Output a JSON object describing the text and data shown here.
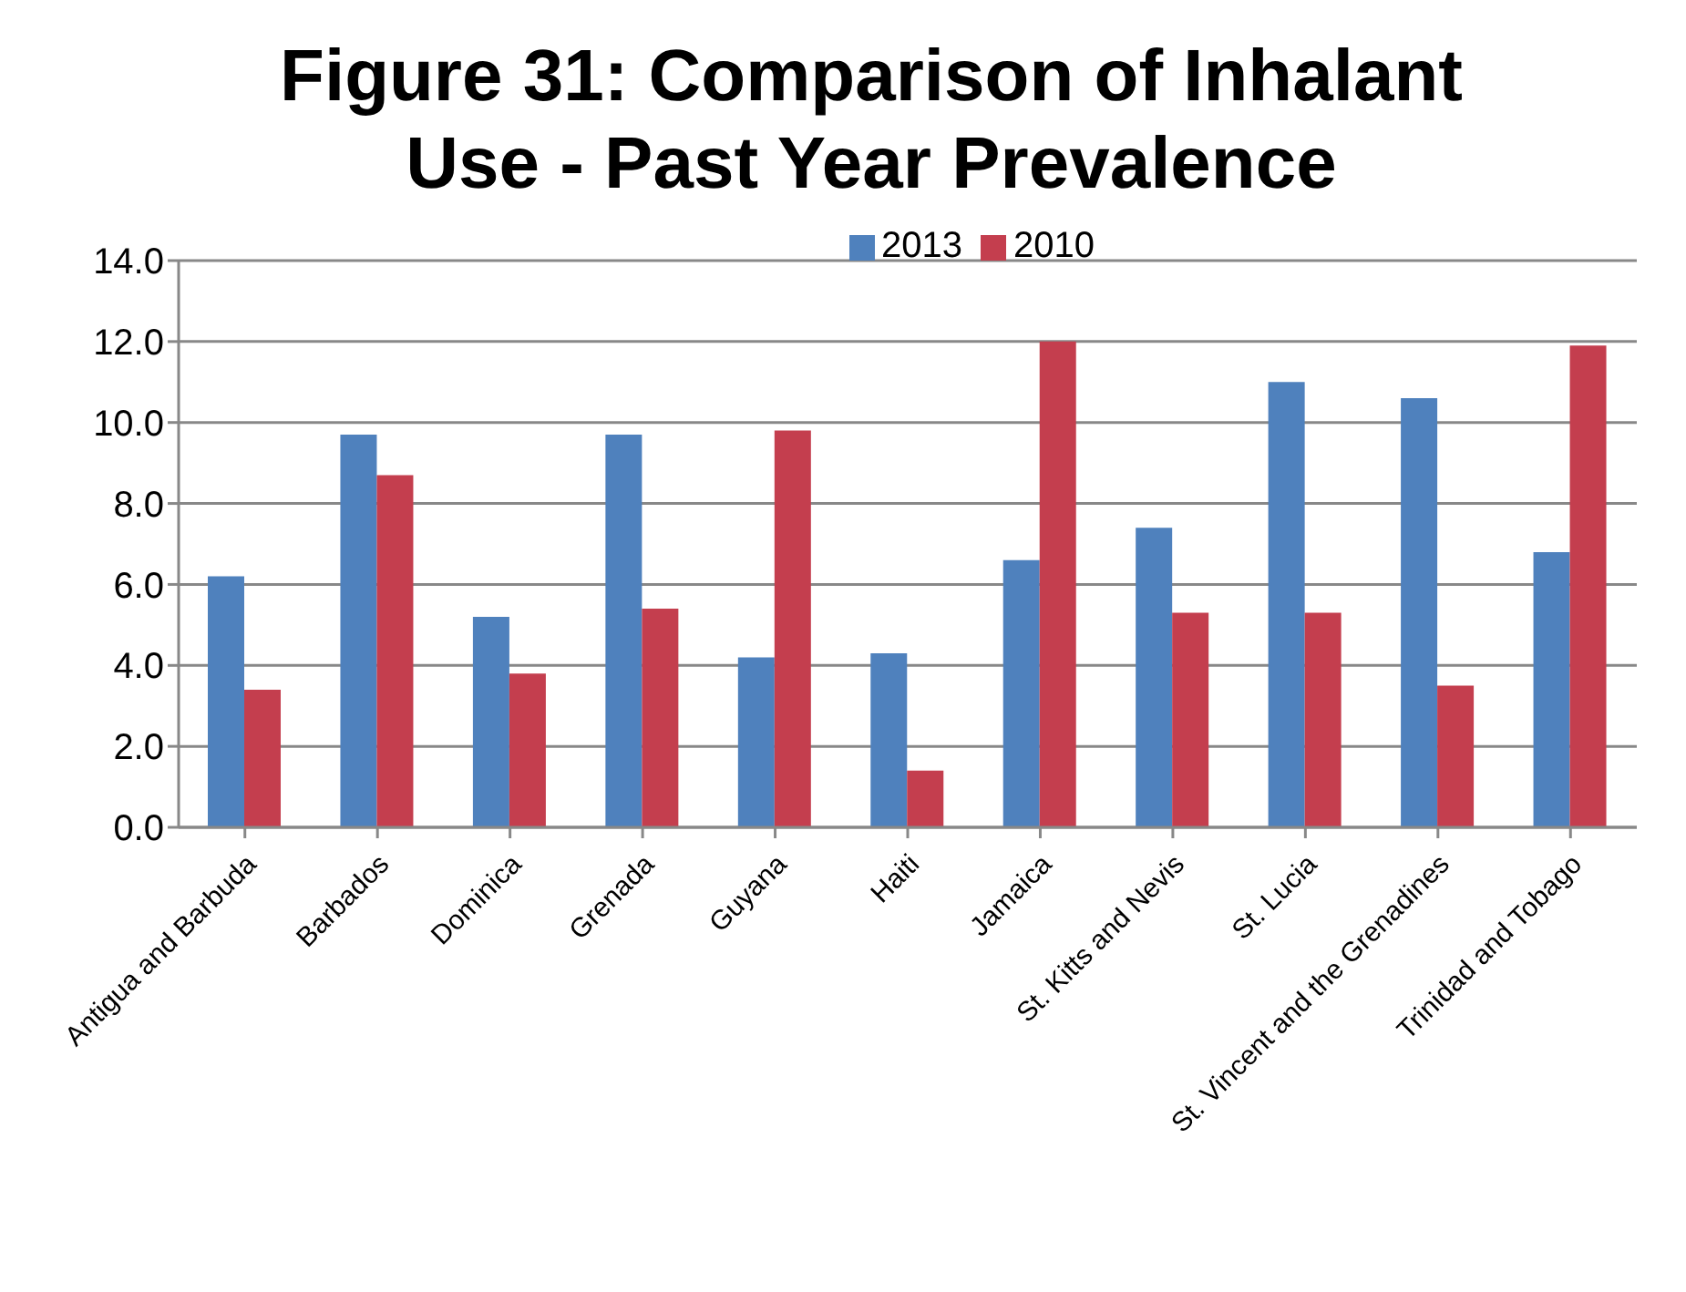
{
  "chart_data": {
    "type": "bar",
    "title": "Figure 31: Comparison of Inhalant Use - Past Year Prevalence",
    "categories": [
      "Antigua and Barbuda",
      "Barbados",
      "Dominica",
      "Grenada",
      "Guyana",
      "Haiti",
      "Jamaica",
      "St. Kitts and Nevis",
      "St. Lucia",
      "St. Vincent and the Grenadines",
      "Trinidad and Tobago"
    ],
    "series": [
      {
        "name": "2013",
        "color": "#4f81bd",
        "values": [
          6.2,
          9.7,
          5.2,
          9.7,
          4.2,
          4.3,
          6.6,
          7.4,
          11.0,
          10.6,
          6.8
        ]
      },
      {
        "name": "2010",
        "color": "#c43e4e",
        "values": [
          3.4,
          8.7,
          3.8,
          5.4,
          9.8,
          1.4,
          12.0,
          5.3,
          5.3,
          3.5,
          11.9
        ]
      }
    ],
    "ylim": [
      0,
      14
    ],
    "yticks": [
      {
        "value": 0,
        "label": "0.0"
      },
      {
        "value": 2,
        "label": "2.0"
      },
      {
        "value": 4,
        "label": "4.0"
      },
      {
        "value": 6,
        "label": "6.0"
      },
      {
        "value": 8,
        "label": "8.0"
      },
      {
        "value": 10,
        "label": "10.0"
      },
      {
        "value": 12,
        "label": "12.0"
      },
      {
        "value": 14,
        "label": "14.0"
      }
    ],
    "grid": "y",
    "legend": "top"
  }
}
